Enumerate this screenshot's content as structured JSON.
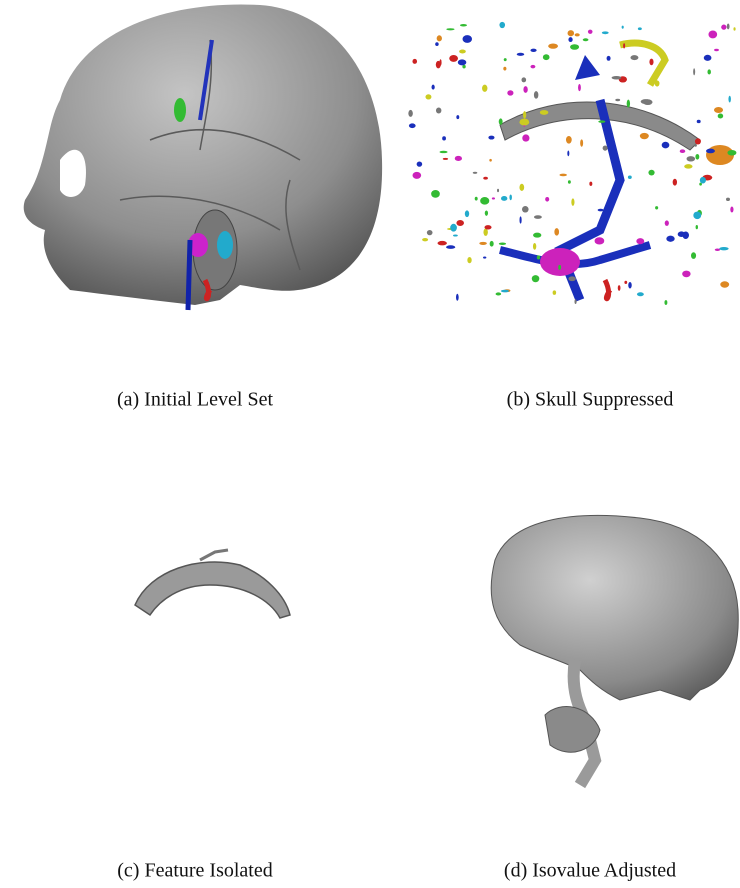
{
  "panels": [
    {
      "caption": "(a) Initial Level Set"
    },
    {
      "caption": "(b) Skull Suppressed"
    },
    {
      "caption": "(c) Feature Isolated"
    },
    {
      "caption": "(d) Isovalue Adjusted"
    }
  ]
}
